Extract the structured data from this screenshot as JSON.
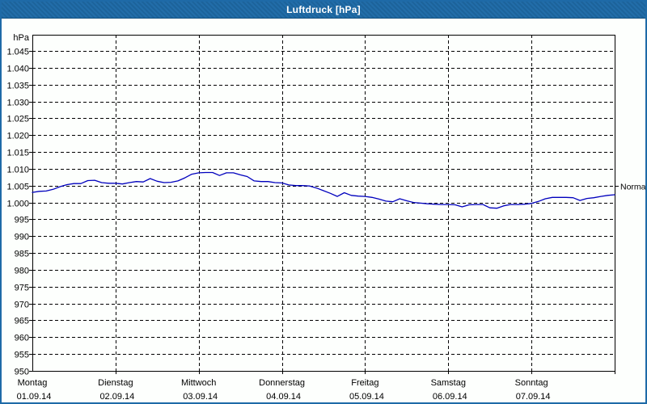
{
  "window": {
    "title": "Luftdruck [hPa]"
  },
  "colors": {
    "titlebar_bg": "#1e6aa7",
    "title_text": "#ffffff",
    "window_border": "#1e6aa7",
    "grid": "#000000",
    "axis": "#000000",
    "line": "#0000bd"
  },
  "chart_data": {
    "type": "line",
    "title": "Luftdruck [hPa]",
    "ylabel": "hPa",
    "ylim": [
      950,
      1050
    ],
    "grid": "dashed",
    "yticks": [
      {
        "value": 1045,
        "label": "1.045"
      },
      {
        "value": 1040,
        "label": "1.040"
      },
      {
        "value": 1035,
        "label": "1.035"
      },
      {
        "value": 1030,
        "label": "1.030"
      },
      {
        "value": 1025,
        "label": "1.025"
      },
      {
        "value": 1020,
        "label": "1.020"
      },
      {
        "value": 1015,
        "label": "1.015"
      },
      {
        "value": 1010,
        "label": "1.010"
      },
      {
        "value": 1005,
        "label": "1.005"
      },
      {
        "value": 1000,
        "label": "1.000"
      },
      {
        "value": 995,
        "label": "995"
      },
      {
        "value": 990,
        "label": "990"
      },
      {
        "value": 985,
        "label": "985"
      },
      {
        "value": 980,
        "label": "980"
      },
      {
        "value": 975,
        "label": "975"
      },
      {
        "value": 970,
        "label": "970"
      },
      {
        "value": 965,
        "label": "965"
      },
      {
        "value": 960,
        "label": "960"
      },
      {
        "value": 955,
        "label": "955"
      },
      {
        "value": 950,
        "label": "950"
      }
    ],
    "x_days": [
      {
        "name": "Montag",
        "date": "01.09.14"
      },
      {
        "name": "Dienstag",
        "date": "02.09.14"
      },
      {
        "name": "Mittwoch",
        "date": "03.09.14"
      },
      {
        "name": "Donnerstag",
        "date": "04.09.14"
      },
      {
        "name": "Freitag",
        "date": "05.09.14"
      },
      {
        "name": "Samstag",
        "date": "06.09.14"
      },
      {
        "name": "Sonntag",
        "date": "07.09.14"
      }
    ],
    "reference_line": {
      "label": "Normal",
      "value": 1005
    },
    "series": [
      {
        "name": "Luftdruck",
        "color": "#0000bd",
        "sample_interval_hours": 2,
        "values": [
          1003.0,
          1003.3,
          1003.4,
          1003.9,
          1004.7,
          1005.3,
          1005.6,
          1005.6,
          1006.5,
          1006.6,
          1005.9,
          1005.7,
          1005.7,
          1005.5,
          1005.9,
          1006.2,
          1006.1,
          1007.1,
          1006.3,
          1005.9,
          1006.0,
          1006.4,
          1007.3,
          1008.4,
          1008.8,
          1008.9,
          1008.9,
          1008.0,
          1008.8,
          1008.8,
          1008.2,
          1007.7,
          1006.4,
          1006.2,
          1006.2,
          1005.9,
          1005.8,
          1005.2,
          1005.0,
          1005.0,
          1004.9,
          1004.3,
          1003.5,
          1002.7,
          1001.8,
          1002.9,
          1002.1,
          1001.9,
          1001.8,
          1001.5,
          1001.0,
          1000.4,
          1000.2,
          1001.1,
          1000.5,
          1000.0,
          999.8,
          999.6,
          999.5,
          999.4,
          999.4,
          999.3,
          998.7,
          999.3,
          999.4,
          999.4,
          998.4,
          998.3,
          999.0,
          999.4,
          999.4,
          999.5,
          999.7,
          1000.3,
          1001.1,
          1001.5,
          1001.5,
          1001.5,
          1001.4,
          1000.6,
          1001.2,
          1001.4,
          1001.8,
          1002.1,
          1002.3
        ]
      }
    ]
  }
}
